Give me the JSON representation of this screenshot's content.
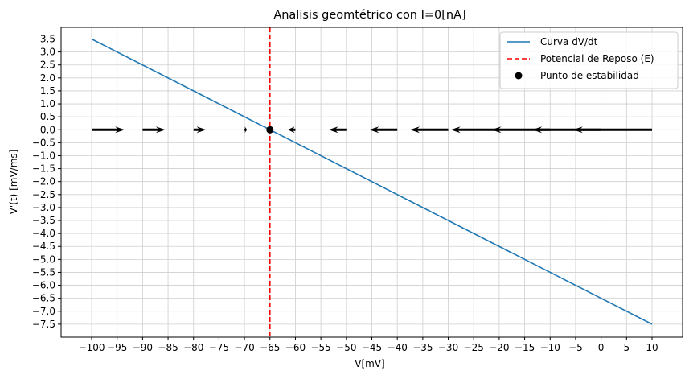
{
  "chart_data": {
    "type": "line",
    "title": "Analisis geomtétrico con I=0[nA]",
    "xlabel": "V[mV]",
    "ylabel": "V'(t) [mV/ms]",
    "xlim": [
      -106,
      16
    ],
    "ylim": [
      -8.0,
      3.95
    ],
    "xticks": [
      -100,
      -95,
      -90,
      -85,
      -80,
      -75,
      -70,
      -65,
      -60,
      -55,
      -50,
      -45,
      -40,
      -35,
      -30,
      -25,
      -20,
      -15,
      -10,
      -5,
      0,
      5,
      10
    ],
    "yticks": [
      3.5,
      3.0,
      2.5,
      2.0,
      1.5,
      1.0,
      0.5,
      0.0,
      -0.5,
      -1.0,
      -1.5,
      -2.0,
      -2.5,
      -3.0,
      -3.5,
      -4.0,
      -4.5,
      -5.0,
      -5.5,
      -6.0,
      -6.5,
      -7.0,
      -7.5
    ],
    "grid": true,
    "legend_position": "top-right",
    "series": [
      {
        "name": "Curva dV/dt",
        "style": "line",
        "color": "#1f77b4",
        "x": [
          -100,
          10
        ],
        "y": [
          3.5,
          -7.5
        ]
      }
    ],
    "vline": {
      "name": "Potencial de Reposo (E)",
      "style": "dashed",
      "color": "#ff0000",
      "x": -65
    },
    "point": {
      "name": "Punto de estabilidad",
      "color": "#000000",
      "x": -65,
      "y": 0
    },
    "arrows": [
      {
        "x": -100,
        "dx": 6.5
      },
      {
        "x": -90,
        "dx": 4.5
      },
      {
        "x": -80,
        "dx": 2.5
      },
      {
        "x": -70,
        "dx": 0.5
      },
      {
        "x": -60,
        "dx": -1.5
      },
      {
        "x": -50,
        "dx": -3.5
      },
      {
        "x": -40,
        "dx": -5.5
      },
      {
        "x": -30,
        "dx": -7.5
      },
      {
        "x": -20,
        "dx": -9.5
      },
      {
        "x": -10,
        "dx": -11.5
      },
      {
        "x": 0,
        "dx": -13.5
      },
      {
        "x": 10,
        "dx": -15.5
      }
    ]
  }
}
